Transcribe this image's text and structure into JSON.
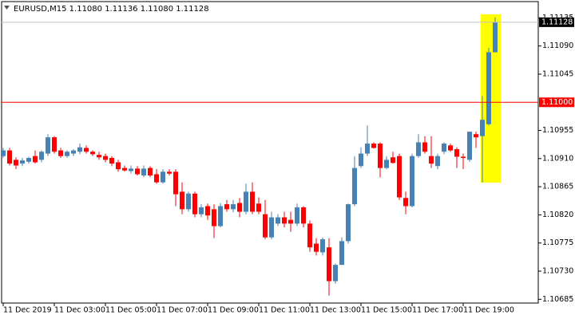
{
  "chart_data": {
    "type": "candlestick",
    "title": "EURUSD,M15  1.11080 1.11136 1.11080 1.11128",
    "up_color": "#4682b4",
    "down_color": "#ff0000",
    "categories": [
      "11 Dec 2019",
      null,
      null,
      null,
      null,
      null,
      null,
      null,
      "11 Dec 03:00",
      null,
      null,
      null,
      null,
      null,
      null,
      null,
      "11 Dec 05:00",
      null,
      null,
      null,
      null,
      null,
      null,
      null,
      "11 Dec 07:00",
      null,
      null,
      null,
      null,
      null,
      null,
      null,
      "11 Dec 09:00",
      null,
      null,
      null,
      null,
      null,
      null,
      null,
      "11 Dec 11:00",
      null,
      null,
      null,
      null,
      null,
      null,
      null,
      "11 Dec 13:00",
      null,
      null,
      null,
      null,
      null,
      null,
      null,
      "11 Dec 15:00",
      null,
      null,
      null,
      null,
      null,
      null,
      null,
      "11 Dec 17:00",
      null,
      null,
      null,
      null,
      null,
      null,
      null,
      "11 Dec 19:00",
      null,
      null,
      null,
      null,
      null
    ],
    "open": [
      1.10914,
      1.10923,
      1.10908,
      1.10902,
      1.10905,
      1.10914,
      1.10908,
      1.10918,
      1.10944,
      1.10923,
      1.10914,
      1.10918,
      1.10921,
      1.10927,
      1.10921,
      1.10916,
      1.10914,
      1.10911,
      1.10904,
      1.10895,
      1.1089,
      1.10894,
      1.10883,
      1.10895,
      1.10885,
      1.10872,
      1.10889,
      1.10889,
      1.10857,
      1.10829,
      1.10854,
      1.10821,
      1.10834,
      1.10829,
      1.10802,
      1.10837,
      1.10829,
      1.10839,
      1.10825,
      1.10857,
      1.10838,
      1.10821,
      1.10784,
      1.10806,
      1.10816,
      1.10812,
      1.10806,
      1.10832,
      1.10806,
      1.10774,
      1.1076,
      1.10768,
      1.10714,
      1.1074,
      1.10778,
      1.10837,
      1.10898,
      1.10918,
      1.10934,
      1.10934,
      1.10895,
      1.10912,
      1.10914,
      1.10847,
      1.10834,
      1.10914,
      1.10936,
      1.10914,
      1.10898,
      1.10921,
      1.10931,
      1.10925,
      1.10913,
      1.10908,
      1.10949,
      1.10946,
      1.10965,
      1.1108
    ],
    "high": [
      1.10927,
      1.10927,
      1.10912,
      1.10911,
      1.10913,
      1.10923,
      1.10923,
      1.10949,
      1.10946,
      1.10927,
      1.10923,
      1.10925,
      1.10934,
      1.10931,
      1.10923,
      1.10921,
      1.10918,
      1.10914,
      1.10908,
      1.10899,
      1.10899,
      1.10898,
      1.10899,
      1.10898,
      1.10893,
      1.10893,
      1.10893,
      1.10893,
      1.10872,
      1.10857,
      1.10857,
      1.10837,
      1.10838,
      1.10837,
      1.10839,
      1.10844,
      1.10844,
      1.10847,
      1.1087,
      1.10872,
      1.10848,
      1.10844,
      1.10825,
      1.10821,
      1.10825,
      1.10825,
      1.10838,
      1.10834,
      1.10811,
      1.10783,
      1.10784,
      1.10783,
      1.10742,
      1.10784,
      1.10838,
      1.10914,
      1.10928,
      1.10963,
      1.10936,
      1.10936,
      1.10914,
      1.10921,
      1.10918,
      1.10857,
      1.10918,
      1.10949,
      1.10946,
      1.10946,
      1.10918,
      1.10936,
      1.10934,
      1.10928,
      1.10918,
      1.10953,
      1.10953,
      1.1101,
      1.11087,
      1.11136
    ],
    "low": [
      1.10911,
      1.10899,
      1.10893,
      1.10898,
      1.10902,
      1.10902,
      1.10904,
      1.10914,
      1.10918,
      1.10911,
      1.10911,
      1.10914,
      1.10917,
      1.10918,
      1.10914,
      1.10908,
      1.10904,
      1.10898,
      1.10889,
      1.10889,
      1.10886,
      1.10883,
      1.1088,
      1.1088,
      1.1087,
      1.1087,
      1.10883,
      1.10834,
      1.10821,
      1.10825,
      1.10816,
      1.10816,
      1.10812,
      1.10783,
      1.108,
      1.10825,
      1.10824,
      1.10816,
      1.10821,
      1.10821,
      1.10821,
      1.10781,
      1.10781,
      1.10802,
      1.108,
      1.10793,
      1.10802,
      1.108,
      1.10761,
      1.10755,
      1.10755,
      1.10691,
      1.1071,
      1.1074,
      1.10774,
      1.10834,
      1.10895,
      1.10914,
      1.10926,
      1.1088,
      1.10893,
      1.10902,
      1.10844,
      1.10821,
      1.10832,
      1.10911,
      1.10918,
      1.10895,
      1.10893,
      1.10917,
      1.10921,
      1.10895,
      1.10893,
      1.10905,
      1.10927,
      1.10872,
      1.10963,
      1.1108
    ],
    "close": [
      1.10923,
      1.10902,
      1.10899,
      1.10907,
      1.10911,
      1.10904,
      1.10921,
      1.10944,
      1.10921,
      1.10914,
      1.10921,
      1.10923,
      1.10928,
      1.10921,
      1.10917,
      1.10912,
      1.10908,
      1.10902,
      1.10893,
      1.10891,
      1.10894,
      1.10885,
      1.10894,
      1.10883,
      1.10872,
      1.10889,
      1.10886,
      1.10853,
      1.10829,
      1.10854,
      1.10821,
      1.10832,
      1.10819,
      1.10802,
      1.10834,
      1.10829,
      1.10837,
      1.10825,
      1.10857,
      1.10825,
      1.10825,
      1.10784,
      1.10816,
      1.10816,
      1.10806,
      1.10806,
      1.10832,
      1.10806,
      1.10768,
      1.10761,
      1.10781,
      1.10714,
      1.1074,
      1.10778,
      1.10837,
      1.10895,
      1.10918,
      1.10934,
      1.10927,
      1.10895,
      1.10908,
      1.10903,
      1.10848,
      1.10834,
      1.10914,
      1.10936,
      1.10921,
      1.10902,
      1.10914,
      1.10934,
      1.10923,
      1.10913,
      1.10911,
      1.10953,
      1.10944,
      1.10972,
      1.1108,
      1.11128
    ],
    "ylim": [
      1.10679,
      1.11161
    ],
    "yticks": [
      1.11135,
      {
        "value": 1.1109,
        "label": "1.11090"
      },
      1.11045,
      1.10955,
      {
        "value": 1.1091,
        "label": "1.10910"
      },
      1.10865,
      {
        "value": 1.1082,
        "label": "1.10820"
      },
      1.10775,
      {
        "value": 1.1073,
        "label": "1.10730"
      },
      1.10685
    ],
    "level_line": {
      "value": 1.11,
      "label": "1.11000",
      "color": "#ff0000"
    },
    "current_price": 1.11128
  }
}
